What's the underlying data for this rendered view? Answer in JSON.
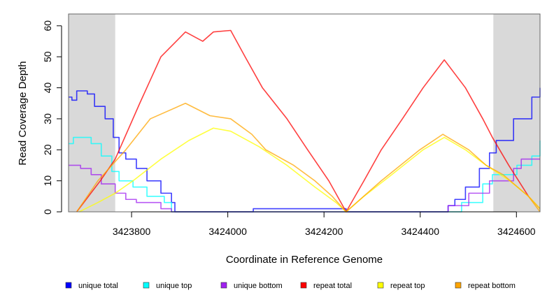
{
  "chart_data": {
    "type": "line",
    "title": "",
    "xlabel": "Coordinate in Reference Genome",
    "ylabel": "Read Coverage Depth",
    "xlim": [
      3423669,
      3424649
    ],
    "ylim": [
      0,
      63.8
    ],
    "xticks": [
      3423800,
      3424000,
      3424200,
      3424400,
      3424600
    ],
    "xtick_labels": [
      "3423800",
      "3424000",
      "3424200",
      "3424400",
      "3424600"
    ],
    "yticks": [
      0,
      10,
      20,
      30,
      40,
      50,
      60
    ],
    "ytick_labels": [
      "0",
      "10",
      "20",
      "30",
      "40",
      "50",
      "60"
    ],
    "shaded_regions": [
      [
        3423669,
        3423766
      ],
      [
        3424552,
        3424649
      ]
    ],
    "shade_color": "#d9d9d9",
    "legend_placement": "bottom",
    "series": [
      {
        "name": "unique total",
        "color": "#0000ff",
        "step": true,
        "points": [
          [
            3423669,
            37
          ],
          [
            3423676,
            36
          ],
          [
            3423686,
            39
          ],
          [
            3423708,
            38
          ],
          [
            3423723,
            34
          ],
          [
            3423745,
            30
          ],
          [
            3423762,
            24
          ],
          [
            3423774,
            19
          ],
          [
            3423788,
            17
          ],
          [
            3423810,
            14
          ],
          [
            3423832,
            10
          ],
          [
            3423861,
            6
          ],
          [
            3423883,
            3
          ],
          [
            3423890,
            0
          ],
          [
            3424053,
            0
          ],
          [
            3424053,
            1
          ],
          [
            3424246,
            1
          ],
          [
            3424246,
            0
          ],
          [
            3424452,
            0
          ],
          [
            3424458,
            2
          ],
          [
            3424472,
            4
          ],
          [
            3424494,
            8
          ],
          [
            3424523,
            14
          ],
          [
            3424544,
            19
          ],
          [
            3424558,
            23
          ],
          [
            3424594,
            30
          ],
          [
            3424632,
            37
          ],
          [
            3424649,
            40
          ]
        ]
      },
      {
        "name": "unique top",
        "color": "#00ffff",
        "step": true,
        "points": [
          [
            3423669,
            22
          ],
          [
            3423679,
            24
          ],
          [
            3423716,
            22
          ],
          [
            3423737,
            18
          ],
          [
            3423759,
            13
          ],
          [
            3423774,
            10
          ],
          [
            3423803,
            8
          ],
          [
            3423832,
            5
          ],
          [
            3423868,
            3
          ],
          [
            3423883,
            0
          ],
          [
            3424479,
            0
          ],
          [
            3424486,
            3
          ],
          [
            3424530,
            9
          ],
          [
            3424550,
            12
          ],
          [
            3424601,
            15
          ],
          [
            3424632,
            18
          ],
          [
            3424649,
            23
          ]
        ]
      },
      {
        "name": "unique bottom",
        "color": "#a020f0",
        "step": true,
        "points": [
          [
            3423669,
            15
          ],
          [
            3423694,
            14
          ],
          [
            3423716,
            12
          ],
          [
            3423737,
            9
          ],
          [
            3423766,
            6
          ],
          [
            3423788,
            4
          ],
          [
            3423810,
            3
          ],
          [
            3423861,
            1
          ],
          [
            3423883,
            0
          ],
          [
            3424452,
            0
          ],
          [
            3424458,
            2
          ],
          [
            3424501,
            6
          ],
          [
            3424544,
            10
          ],
          [
            3424594,
            14
          ],
          [
            3424610,
            17
          ],
          [
            3424649,
            17
          ]
        ]
      },
      {
        "name": "repeat total",
        "color": "#ff0000",
        "step": false,
        "points": [
          [
            3423686,
            0
          ],
          [
            3423735,
            10
          ],
          [
            3423766,
            17
          ],
          [
            3423817,
            35
          ],
          [
            3423861,
            50
          ],
          [
            3423912,
            58
          ],
          [
            3423948,
            55
          ],
          [
            3423970,
            58
          ],
          [
            3424006,
            58.5
          ],
          [
            3424036,
            50
          ],
          [
            3424072,
            40
          ],
          [
            3424123,
            30
          ],
          [
            3424166,
            20
          ],
          [
            3424210,
            10
          ],
          [
            3424246,
            0
          ],
          [
            3424283,
            10
          ],
          [
            3424319,
            20
          ],
          [
            3424363,
            30
          ],
          [
            3424406,
            40
          ],
          [
            3424450,
            49
          ],
          [
            3424494,
            40
          ],
          [
            3424530,
            30
          ],
          [
            3424550,
            24
          ],
          [
            3424584,
            15
          ],
          [
            3424625,
            5
          ],
          [
            3424649,
            1
          ]
        ]
      },
      {
        "name": "repeat top",
        "color": "#ffff00",
        "step": false,
        "points": [
          [
            3423691,
            0
          ],
          [
            3423730,
            3
          ],
          [
            3423766,
            6
          ],
          [
            3423803,
            10
          ],
          [
            3423861,
            17
          ],
          [
            3423919,
            23
          ],
          [
            3423970,
            27
          ],
          [
            3424006,
            26
          ],
          [
            3424065,
            21
          ],
          [
            3424123,
            15
          ],
          [
            3424181,
            8
          ],
          [
            3424225,
            3
          ],
          [
            3424246,
            0
          ],
          [
            3424283,
            5
          ],
          [
            3424341,
            12
          ],
          [
            3424406,
            20
          ],
          [
            3424450,
            24
          ],
          [
            3424494,
            20
          ],
          [
            3424537,
            15
          ],
          [
            3424586,
            10
          ],
          [
            3424625,
            5
          ],
          [
            3424649,
            1
          ]
        ]
      },
      {
        "name": "repeat bottom",
        "color": "#ffa500",
        "step": false,
        "points": [
          [
            3423686,
            0
          ],
          [
            3423730,
            10
          ],
          [
            3423788,
            20
          ],
          [
            3423839,
            30
          ],
          [
            3423912,
            35
          ],
          [
            3423963,
            31
          ],
          [
            3424006,
            30
          ],
          [
            3424050,
            25
          ],
          [
            3424079,
            20
          ],
          [
            3424137,
            15
          ],
          [
            3424181,
            10
          ],
          [
            3424217,
            5
          ],
          [
            3424246,
            0
          ],
          [
            3424319,
            10
          ],
          [
            3424399,
            20
          ],
          [
            3424447,
            25
          ],
          [
            3424501,
            20
          ],
          [
            3424537,
            15
          ],
          [
            3424572,
            12
          ],
          [
            3424625,
            5
          ],
          [
            3424649,
            0
          ]
        ]
      }
    ]
  }
}
